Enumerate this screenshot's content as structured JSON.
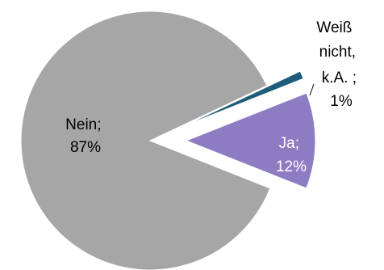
{
  "chart_data": {
    "type": "pie",
    "slices": [
      {
        "name": "Nein",
        "value": 87,
        "label_line1": "Nein;",
        "label_line2": "87%",
        "color": "#A6A6A6",
        "exploded": false
      },
      {
        "name": "Weiß nicht, k.A.",
        "value": 1,
        "label_line1": "Weiß",
        "label_line2": "nicht,",
        "label_line3": "k.A. ;",
        "label_line4": "1%",
        "color": "#1F5C7A",
        "exploded": true
      },
      {
        "name": "Ja",
        "value": 12,
        "label_line1": "Ja;",
        "label_line2": "12%",
        "color": "#8E7CC3",
        "exploded": true
      }
    ]
  }
}
